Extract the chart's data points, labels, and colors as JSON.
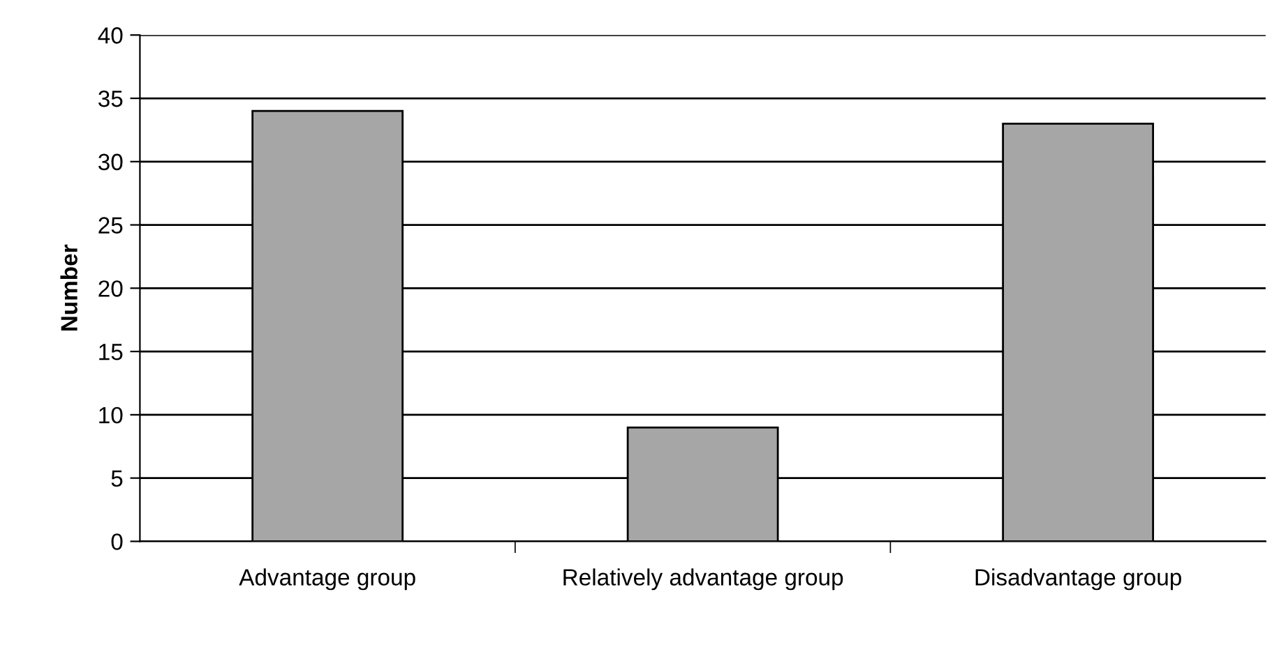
{
  "chart_data": {
    "type": "bar",
    "ylabel": "Number",
    "categories": [
      "Advantage group",
      "Relatively advantage group",
      "Disadvantage group"
    ],
    "values": [
      34,
      9,
      33
    ],
    "color": "#a6a6a6",
    "ylim": [
      0,
      40
    ],
    "yticks": [
      0,
      5,
      10,
      15,
      20,
      25,
      30,
      35,
      40
    ],
    "grid": "y",
    "legend": false
  }
}
